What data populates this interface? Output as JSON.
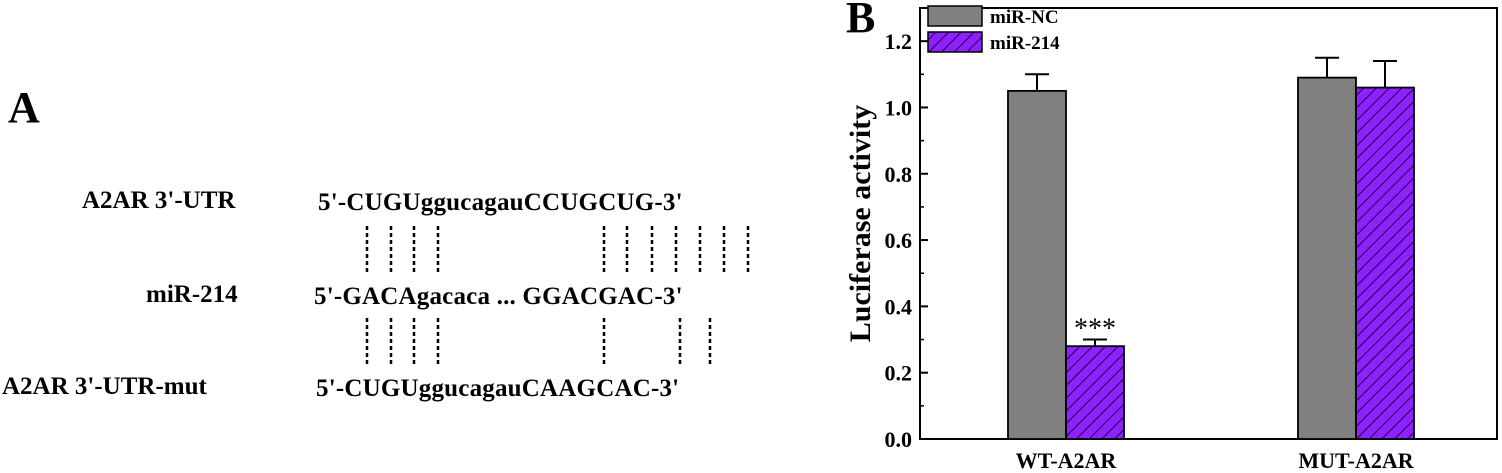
{
  "panel_a": {
    "letter": "A",
    "rows": [
      {
        "label": "A2AR 3'-UTR",
        "sequence": "5'-CUGUggucagauCCUGCUG-3'"
      },
      {
        "label": "miR-214",
        "sequence": "5'-GACAgacaca ... GGACGAC-3'"
      },
      {
        "label": "A2AR 3'-UTR-mut",
        "sequence": "5'-CUGUggucagauCAAGCAC-3'"
      }
    ]
  },
  "panel_b": {
    "letter": "B"
  },
  "chart_data": {
    "type": "bar",
    "categories": [
      "WT-A2AR",
      "MUT-A2AR"
    ],
    "series": [
      {
        "name": "miR-NC",
        "values": [
          1.05,
          1.09
        ],
        "errors": [
          0.05,
          0.06
        ],
        "color": "#808080",
        "pattern": "solid"
      },
      {
        "name": "miR-214",
        "values": [
          0.28,
          1.06
        ],
        "errors": [
          0.02,
          0.08
        ],
        "color": "#8f20ff",
        "pattern": "diagonal-hatch"
      }
    ],
    "annotations": [
      {
        "category": "WT-A2AR",
        "series": "miR-214",
        "text": "***"
      }
    ],
    "xlabel": "",
    "ylabel": "Luciferase activity",
    "ylim": [
      0,
      1.3
    ],
    "yticks": [
      "0.0",
      "0.2",
      "0.4",
      "0.6",
      "0.8",
      "1.0",
      "1.2"
    ],
    "legend_position": "top-left",
    "grid": false
  }
}
